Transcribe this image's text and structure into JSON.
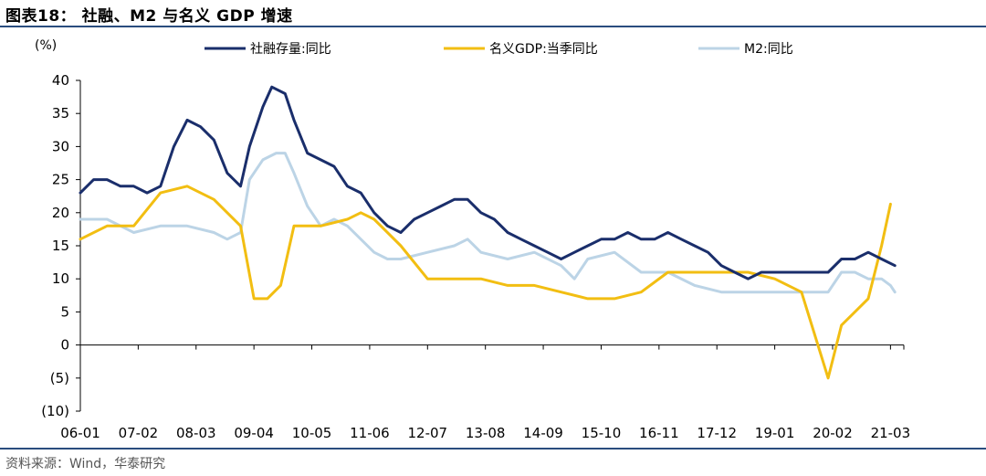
{
  "header": {
    "title": "图表18： 社融、M2 与名义 GDP 增速"
  },
  "footer": {
    "source": "资料来源：Wind，华泰研究"
  },
  "colors": {
    "rule": "#2a4d7e",
    "axis": "#000000"
  },
  "chart_data": {
    "type": "line",
    "title": "社融、M2 与名义 GDP 增速",
    "ylabel": "(%)",
    "xlabel": "",
    "ylim": [
      -10,
      40
    ],
    "yticks": [
      40,
      35,
      30,
      25,
      20,
      15,
      10,
      5,
      0,
      -5,
      -10
    ],
    "ytick_labels": [
      "40",
      "35",
      "30",
      "25",
      "20",
      "15",
      "10",
      "5",
      "0",
      "(5)",
      "(10)"
    ],
    "xlim": [
      "2006-01",
      "2021-06"
    ],
    "x_tick_labels": [
      "06-01",
      "07-02",
      "08-03",
      "09-04",
      "10-05",
      "11-06",
      "12-07",
      "13-08",
      "14-09",
      "15-10",
      "16-11",
      "17-12",
      "19-01",
      "20-02",
      "21-03"
    ],
    "x_tick_dates": [
      "2006-01",
      "2007-02",
      "2008-03",
      "2009-04",
      "2010-05",
      "2011-06",
      "2012-07",
      "2013-08",
      "2014-09",
      "2015-10",
      "2016-11",
      "2017-12",
      "2019-01",
      "2020-02",
      "2021-03"
    ],
    "grid": false,
    "legend": "top",
    "series": [
      {
        "name": "社融存量:同比",
        "color": "#1a2e6b",
        "x": [
          "2006-01",
          "2006-04",
          "2006-07",
          "2006-10",
          "2007-01",
          "2007-04",
          "2007-07",
          "2007-10",
          "2008-01",
          "2008-04",
          "2008-07",
          "2008-10",
          "2009-01",
          "2009-03",
          "2009-06",
          "2009-08",
          "2009-11",
          "2010-01",
          "2010-04",
          "2010-07",
          "2010-10",
          "2011-01",
          "2011-04",
          "2011-07",
          "2011-10",
          "2012-01",
          "2012-04",
          "2012-07",
          "2012-10",
          "2013-01",
          "2013-04",
          "2013-07",
          "2013-10",
          "2014-01",
          "2014-04",
          "2014-07",
          "2014-10",
          "2015-01",
          "2015-04",
          "2015-07",
          "2015-10",
          "2016-01",
          "2016-04",
          "2016-07",
          "2016-10",
          "2017-01",
          "2017-04",
          "2017-07",
          "2017-10",
          "2018-01",
          "2018-04",
          "2018-07",
          "2018-10",
          "2019-01",
          "2019-04",
          "2019-07",
          "2019-10",
          "2020-01",
          "2020-04",
          "2020-07",
          "2020-10",
          "2021-01",
          "2021-04"
        ],
        "y": [
          23,
          25,
          25,
          24,
          24,
          23,
          24,
          30,
          34,
          33,
          31,
          26,
          24,
          30,
          36,
          39,
          38,
          34,
          29,
          28,
          27,
          24,
          23,
          20,
          18,
          17,
          19,
          20,
          21,
          22,
          22,
          20,
          19,
          17,
          16,
          15,
          14,
          13,
          14,
          15,
          16,
          16,
          17,
          16,
          16,
          17,
          16,
          15,
          14,
          12,
          11,
          10,
          11,
          11,
          11,
          11,
          11,
          11,
          13,
          13,
          14,
          13,
          12
        ]
      },
      {
        "name": "名义GDP:当季同比",
        "color": "#f2be12",
        "x": [
          "2006-01",
          "2006-07",
          "2007-01",
          "2007-07",
          "2008-01",
          "2008-07",
          "2008-10",
          "2009-01",
          "2009-04",
          "2009-07",
          "2009-10",
          "2010-01",
          "2010-04",
          "2010-07",
          "2011-01",
          "2011-04",
          "2011-07",
          "2012-01",
          "2012-07",
          "2013-01",
          "2013-07",
          "2014-01",
          "2014-07",
          "2015-01",
          "2015-07",
          "2016-01",
          "2016-07",
          "2017-01",
          "2017-07",
          "2018-01",
          "2018-07",
          "2019-01",
          "2019-07",
          "2020-01",
          "2020-04",
          "2020-07",
          "2020-10",
          "2021-01",
          "2021-03"
        ],
        "y": [
          16,
          18,
          18,
          23,
          24,
          22,
          20,
          18,
          7,
          7,
          9,
          18,
          18,
          18,
          19,
          20,
          19,
          15,
          10,
          10,
          10,
          9,
          9,
          8,
          7,
          7,
          8,
          11,
          11,
          11,
          11,
          10,
          8,
          -5,
          3,
          5,
          7,
          15,
          21.3
        ]
      },
      {
        "name": "M2:同比",
        "color": "#bcd4e6",
        "x": [
          "2006-01",
          "2006-07",
          "2007-01",
          "2007-07",
          "2008-01",
          "2008-07",
          "2008-10",
          "2009-01",
          "2009-03",
          "2009-06",
          "2009-09",
          "2009-11",
          "2010-01",
          "2010-04",
          "2010-07",
          "2010-10",
          "2011-01",
          "2011-04",
          "2011-07",
          "2011-10",
          "2012-01",
          "2012-07",
          "2013-01",
          "2013-04",
          "2013-07",
          "2014-01",
          "2014-07",
          "2015-01",
          "2015-04",
          "2015-07",
          "2016-01",
          "2016-07",
          "2017-01",
          "2017-07",
          "2018-01",
          "2018-07",
          "2019-01",
          "2019-07",
          "2020-01",
          "2020-04",
          "2020-07",
          "2020-10",
          "2021-01",
          "2021-03",
          "2021-04"
        ],
        "y": [
          19,
          19,
          17,
          18,
          18,
          17,
          16,
          17,
          25,
          28,
          29,
          29,
          26,
          21,
          18,
          19,
          18,
          16,
          14,
          13,
          13,
          14,
          15,
          16,
          14,
          13,
          14,
          12,
          10,
          13,
          14,
          11,
          11,
          9,
          8,
          8,
          8,
          8,
          8,
          11,
          11,
          10,
          10,
          9,
          8
        ]
      }
    ]
  }
}
